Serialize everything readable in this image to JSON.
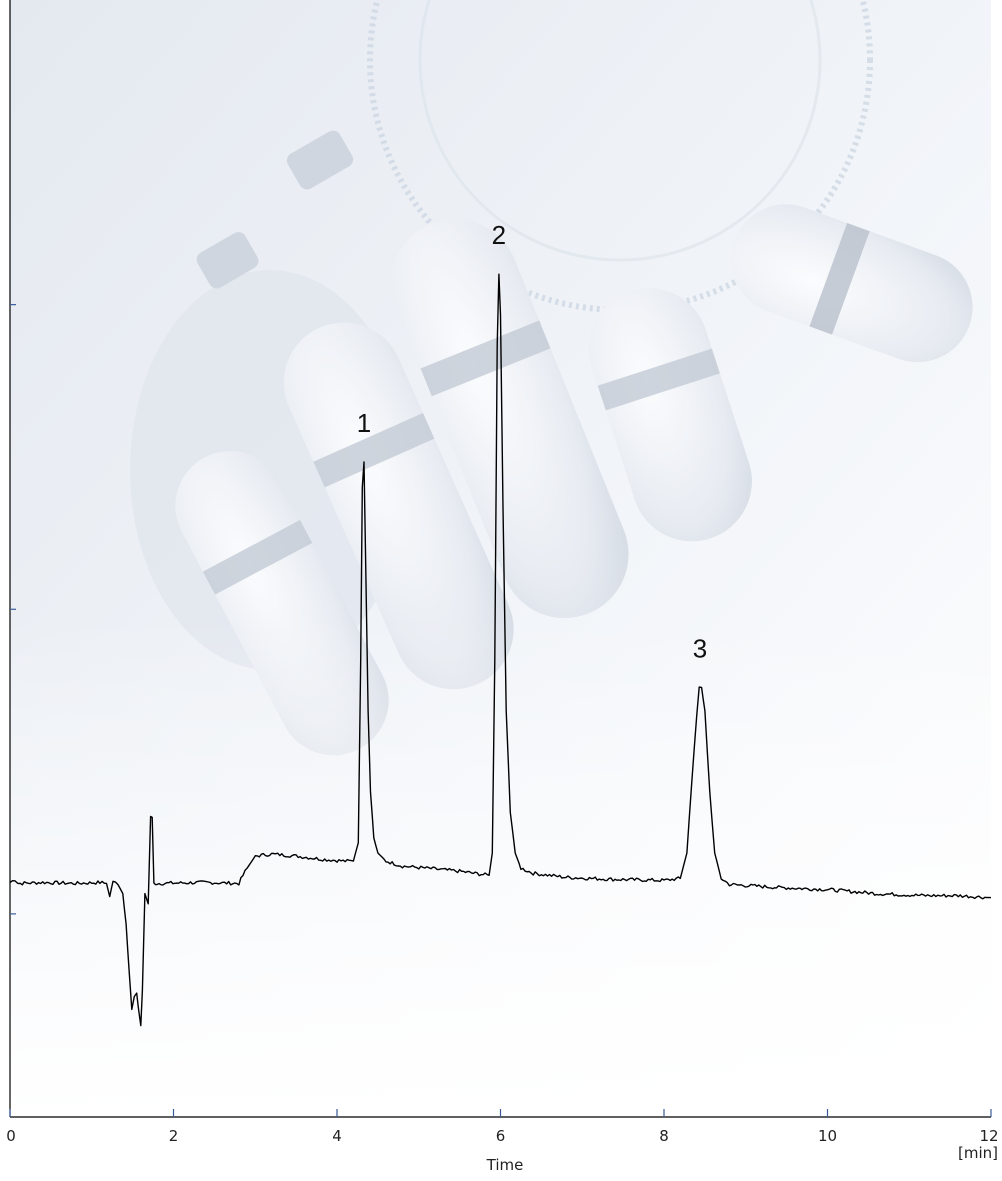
{
  "chart_data": {
    "type": "line",
    "title": "",
    "xlabel": "Time",
    "x_unit": "[min]",
    "ylabel": "",
    "xlim": [
      0,
      12
    ],
    "ylim": [
      -1.0,
      10.0
    ],
    "x_ticks": [
      {
        "value": 0,
        "label": "0"
      },
      {
        "value": 2,
        "label": "2"
      },
      {
        "value": 4,
        "label": "4"
      },
      {
        "value": 6,
        "label": "6"
      },
      {
        "value": 8,
        "label": "8"
      },
      {
        "value": 10,
        "label": "10"
      },
      {
        "value": 12,
        "label": "12"
      }
    ],
    "y_tick_values": [
      1,
      4,
      7
    ],
    "grid": false,
    "legend": "none",
    "background_image": "robot-hand-watermark",
    "line_color": "#000000",
    "series": [
      {
        "points": [
          [
            0.0,
            1.31
          ],
          [
            0.06,
            1.34
          ],
          [
            0.1,
            1.3
          ],
          [
            0.4,
            1.31
          ],
          [
            0.8,
            1.3
          ],
          [
            1.1,
            1.31
          ],
          [
            1.18,
            1.3
          ],
          [
            1.22,
            1.17
          ],
          [
            1.26,
            1.33
          ],
          [
            1.32,
            1.29
          ],
          [
            1.38,
            1.2
          ],
          [
            1.42,
            0.9
          ],
          [
            1.46,
            0.4
          ],
          [
            1.49,
            0.06
          ],
          [
            1.52,
            0.19
          ],
          [
            1.55,
            0.22
          ],
          [
            1.57,
            0.08
          ],
          [
            1.6,
            -0.1
          ],
          [
            1.62,
            0.25
          ],
          [
            1.65,
            1.2
          ],
          [
            1.69,
            1.1
          ],
          [
            1.72,
            1.95
          ],
          [
            1.74,
            1.95
          ],
          [
            1.76,
            1.3
          ],
          [
            1.8,
            1.3
          ],
          [
            2.4,
            1.31
          ],
          [
            2.8,
            1.3
          ],
          [
            2.85,
            1.38
          ],
          [
            2.9,
            1.45
          ],
          [
            3.0,
            1.57
          ],
          [
            3.2,
            1.59
          ],
          [
            3.5,
            1.57
          ],
          [
            3.8,
            1.54
          ],
          [
            4.1,
            1.52
          ],
          [
            4.2,
            1.52
          ],
          [
            4.26,
            1.7
          ],
          [
            4.29,
            3.5
          ],
          [
            4.31,
            5.2
          ],
          [
            4.33,
            5.45
          ],
          [
            4.35,
            4.5
          ],
          [
            4.38,
            3.0
          ],
          [
            4.41,
            2.2
          ],
          [
            4.45,
            1.75
          ],
          [
            4.5,
            1.6
          ],
          [
            4.6,
            1.52
          ],
          [
            4.8,
            1.47
          ],
          [
            5.1,
            1.45
          ],
          [
            5.5,
            1.42
          ],
          [
            5.86,
            1.38
          ],
          [
            5.9,
            1.6
          ],
          [
            5.93,
            3.5
          ],
          [
            5.96,
            6.6
          ],
          [
            5.98,
            7.3
          ],
          [
            6.0,
            6.9
          ],
          [
            6.03,
            5.0
          ],
          [
            6.07,
            3.0
          ],
          [
            6.12,
            2.0
          ],
          [
            6.18,
            1.6
          ],
          [
            6.25,
            1.45
          ],
          [
            6.4,
            1.4
          ],
          [
            6.8,
            1.36
          ],
          [
            7.4,
            1.34
          ],
          [
            8.0,
            1.33
          ],
          [
            8.2,
            1.35
          ],
          [
            8.28,
            1.6
          ],
          [
            8.34,
            2.3
          ],
          [
            8.4,
            2.95
          ],
          [
            8.43,
            3.23
          ],
          [
            8.46,
            3.23
          ],
          [
            8.5,
            3.0
          ],
          [
            8.56,
            2.2
          ],
          [
            8.62,
            1.6
          ],
          [
            8.7,
            1.35
          ],
          [
            8.8,
            1.29
          ],
          [
            9.4,
            1.26
          ],
          [
            10.0,
            1.24
          ],
          [
            10.6,
            1.2
          ],
          [
            11.2,
            1.18
          ],
          [
            11.6,
            1.18
          ],
          [
            12.0,
            1.16
          ]
        ]
      }
    ],
    "annotations": [
      {
        "text": "1",
        "x": 4.33,
        "y": 5.45
      },
      {
        "text": "2",
        "x": 5.98,
        "y": 7.3
      },
      {
        "text": "3",
        "x": 8.44,
        "y": 3.23
      }
    ]
  }
}
